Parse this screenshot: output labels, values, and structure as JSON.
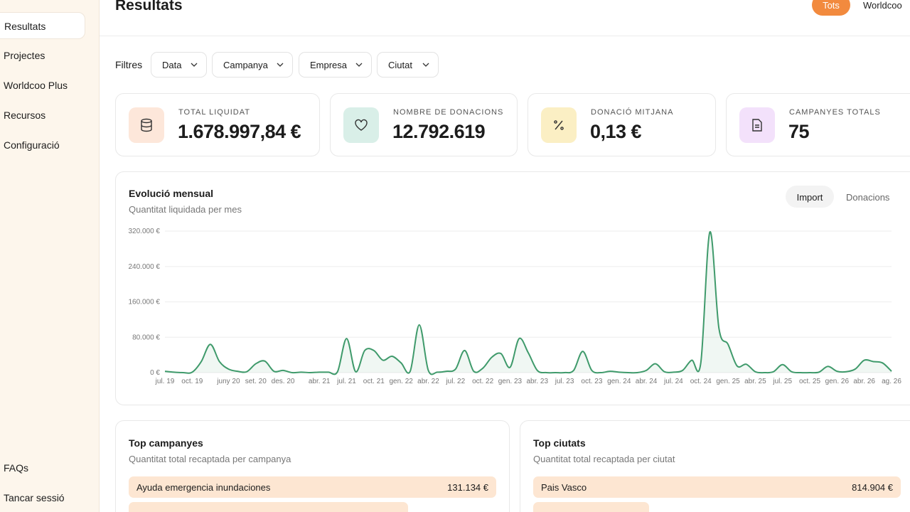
{
  "sidebar": {
    "nav": [
      "Resultats",
      "Projectes",
      "Worldcoo Plus",
      "Recursos",
      "Configuració"
    ],
    "footer": [
      "FAQs",
      "Tancar sessió"
    ]
  },
  "header": {
    "title": "Resultats",
    "toggle": [
      "Tots",
      "Worldcoo"
    ]
  },
  "filters": {
    "label": "Filtres",
    "options": [
      "Data",
      "Campanya",
      "Empresa",
      "Ciutat"
    ]
  },
  "stats": [
    {
      "label": "TOTAL LIQUIDAT",
      "value": "1.678.997,84 €"
    },
    {
      "label": "NOMBRE DE DONACIONS",
      "value": "12.792.619"
    },
    {
      "label": "DONACIÓ MITJANA",
      "value": "0,13 €"
    },
    {
      "label": "CAMPANYES TOTALS",
      "value": "75"
    }
  ],
  "chart_toggle": [
    "Import",
    "Donacions"
  ],
  "chart_data": {
    "type": "line",
    "title": "Evolució mensual",
    "subtitle": "Quantitat liquidada per mes",
    "categories": [
      "jul. 19",
      null,
      null,
      "oct. 19",
      null,
      null,
      null,
      "juny 20",
      null,
      null,
      "set. 20",
      null,
      null,
      "des. 20",
      null,
      null,
      null,
      "abr. 21",
      null,
      null,
      "jul. 21",
      null,
      null,
      "oct. 21",
      null,
      null,
      "gen. 22",
      null,
      null,
      "abr. 22",
      null,
      null,
      "jul. 22",
      null,
      null,
      "oct. 22",
      null,
      null,
      "gen. 23",
      null,
      null,
      "abr. 23",
      null,
      null,
      "jul. 23",
      null,
      null,
      "oct. 23",
      null,
      null,
      "gen. 24",
      null,
      null,
      "abr. 24",
      null,
      null,
      "jul. 24",
      null,
      null,
      "oct. 24",
      null,
      null,
      "gen. 25",
      null,
      null,
      "abr. 25",
      null,
      null,
      "jul. 25",
      null,
      null,
      "oct. 25",
      null,
      null,
      "gen. 26",
      null,
      null,
      "abr. 26",
      null,
      null,
      "ag. 26"
    ],
    "values": [
      3000,
      1000,
      0,
      1000,
      25000,
      64000,
      25000,
      8000,
      3000,
      2000,
      20000,
      26000,
      3000,
      5000,
      0,
      1000,
      0,
      1000,
      1000,
      2000,
      77000,
      2000,
      50000,
      50000,
      28000,
      37000,
      22000,
      3000,
      108000,
      5000,
      1000,
      3000,
      8000,
      50000,
      3000,
      10000,
      35000,
      43000,
      12000,
      77000,
      45000,
      5000,
      0,
      0,
      0,
      5000,
      48000,
      5000,
      0,
      3000,
      1000,
      0,
      0,
      5000,
      20000,
      2000,
      1000,
      5000,
      28000,
      22000,
      318000,
      100000,
      64000,
      15000,
      19000,
      2000,
      0,
      2000,
      18000,
      2000,
      0,
      0,
      1000,
      14000,
      3000,
      2000,
      8000,
      28000,
      25000,
      22000,
      3000
    ],
    "color": "#3f9a6b",
    "ylim": [
      0,
      320000
    ],
    "yticks": [
      {
        "value": 0,
        "label": "0 €"
      },
      {
        "value": 80000,
        "label": "80.000 €"
      },
      {
        "value": 160000,
        "label": "160.000 €"
      },
      {
        "value": 240000,
        "label": "240.000 €"
      },
      {
        "value": 320000,
        "label": "320.000 €"
      }
    ],
    "grid": true
  },
  "rankings": [
    {
      "title": "Top campanyes",
      "subtitle": "Quantitat total recaptada per campanya",
      "rows": [
        {
          "label": "Ayuda emergencia inundaciones",
          "value": "131.134 €"
        }
      ]
    },
    {
      "title": "Top ciutats",
      "subtitle": "Quantitat total recaptada per ciutat",
      "rows": [
        {
          "label": "Pais Vasco",
          "value": "814.904 €"
        }
      ]
    }
  ]
}
